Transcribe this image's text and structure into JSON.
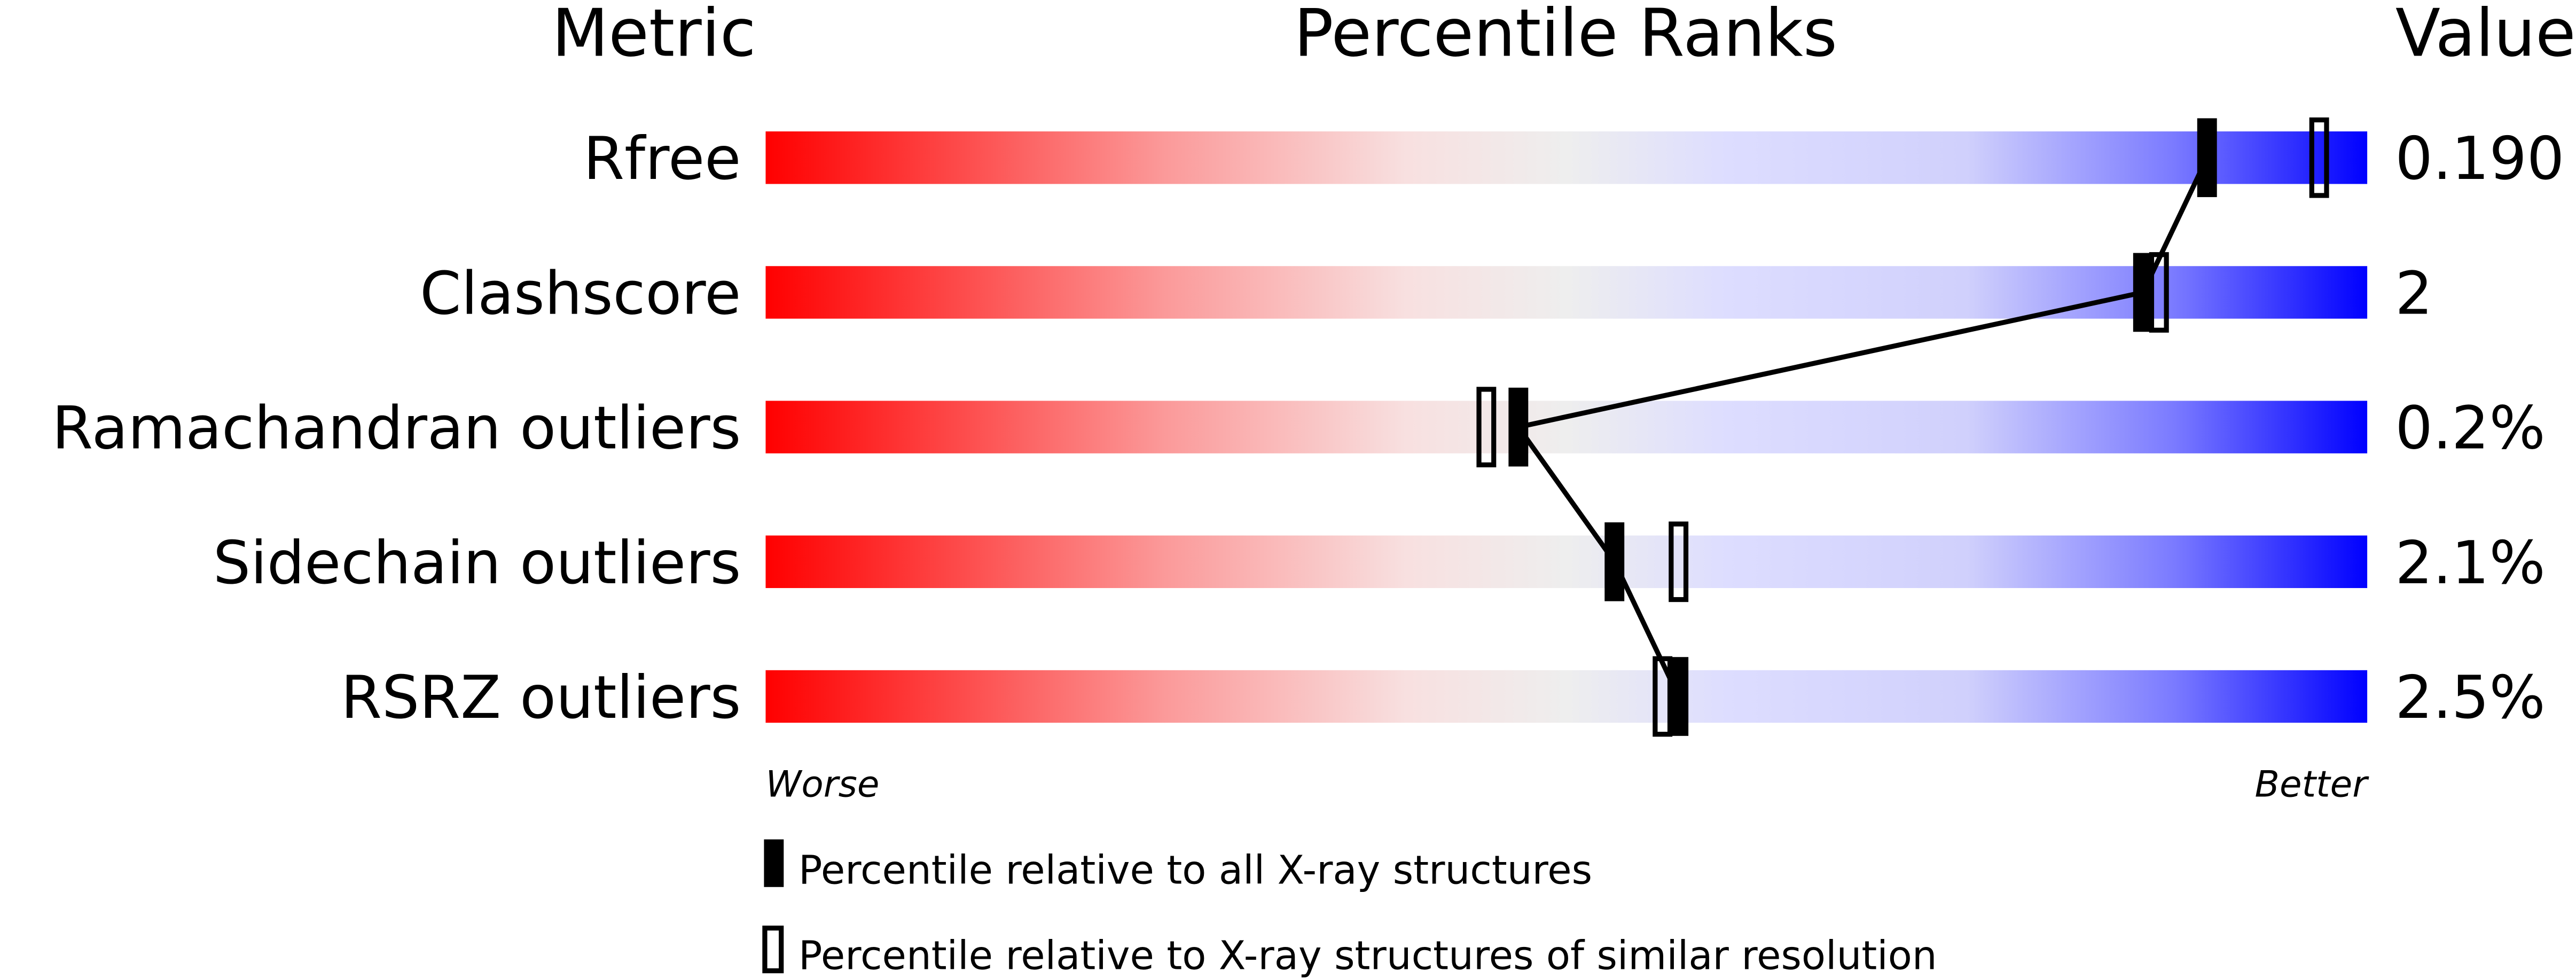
{
  "chart_data": {
    "type": "percentile-bar",
    "headers": {
      "metric": "Metric",
      "ranks": "Percentile Ranks",
      "value": "Value"
    },
    "xlim": [
      0,
      100
    ],
    "axis_labels": {
      "worse": "Worse",
      "better": "Better"
    },
    "gradient_colors": [
      "#ff0000",
      "#eeeeee",
      "#ddddff",
      "#0000ff"
    ],
    "rows": [
      {
        "metric": "Rfree",
        "value": "0.190",
        "percentile_all": 90,
        "percentile_similar": 97
      },
      {
        "metric": "Clashscore",
        "value": "2",
        "percentile_all": 86,
        "percentile_similar": 87
      },
      {
        "metric": "Ramachandran outliers",
        "value": "0.2%",
        "percentile_all": 47,
        "percentile_similar": 45
      },
      {
        "metric": "Sidechain outliers",
        "value": "2.1%",
        "percentile_all": 53,
        "percentile_similar": 57
      },
      {
        "metric": "RSRZ outliers",
        "value": "2.5%",
        "percentile_all": 57,
        "percentile_similar": 56
      }
    ],
    "legend": [
      {
        "marker": "filled",
        "label": "Percentile relative to all X-ray structures"
      },
      {
        "marker": "open",
        "label": "Percentile relative to X-ray structures of similar resolution"
      }
    ]
  }
}
